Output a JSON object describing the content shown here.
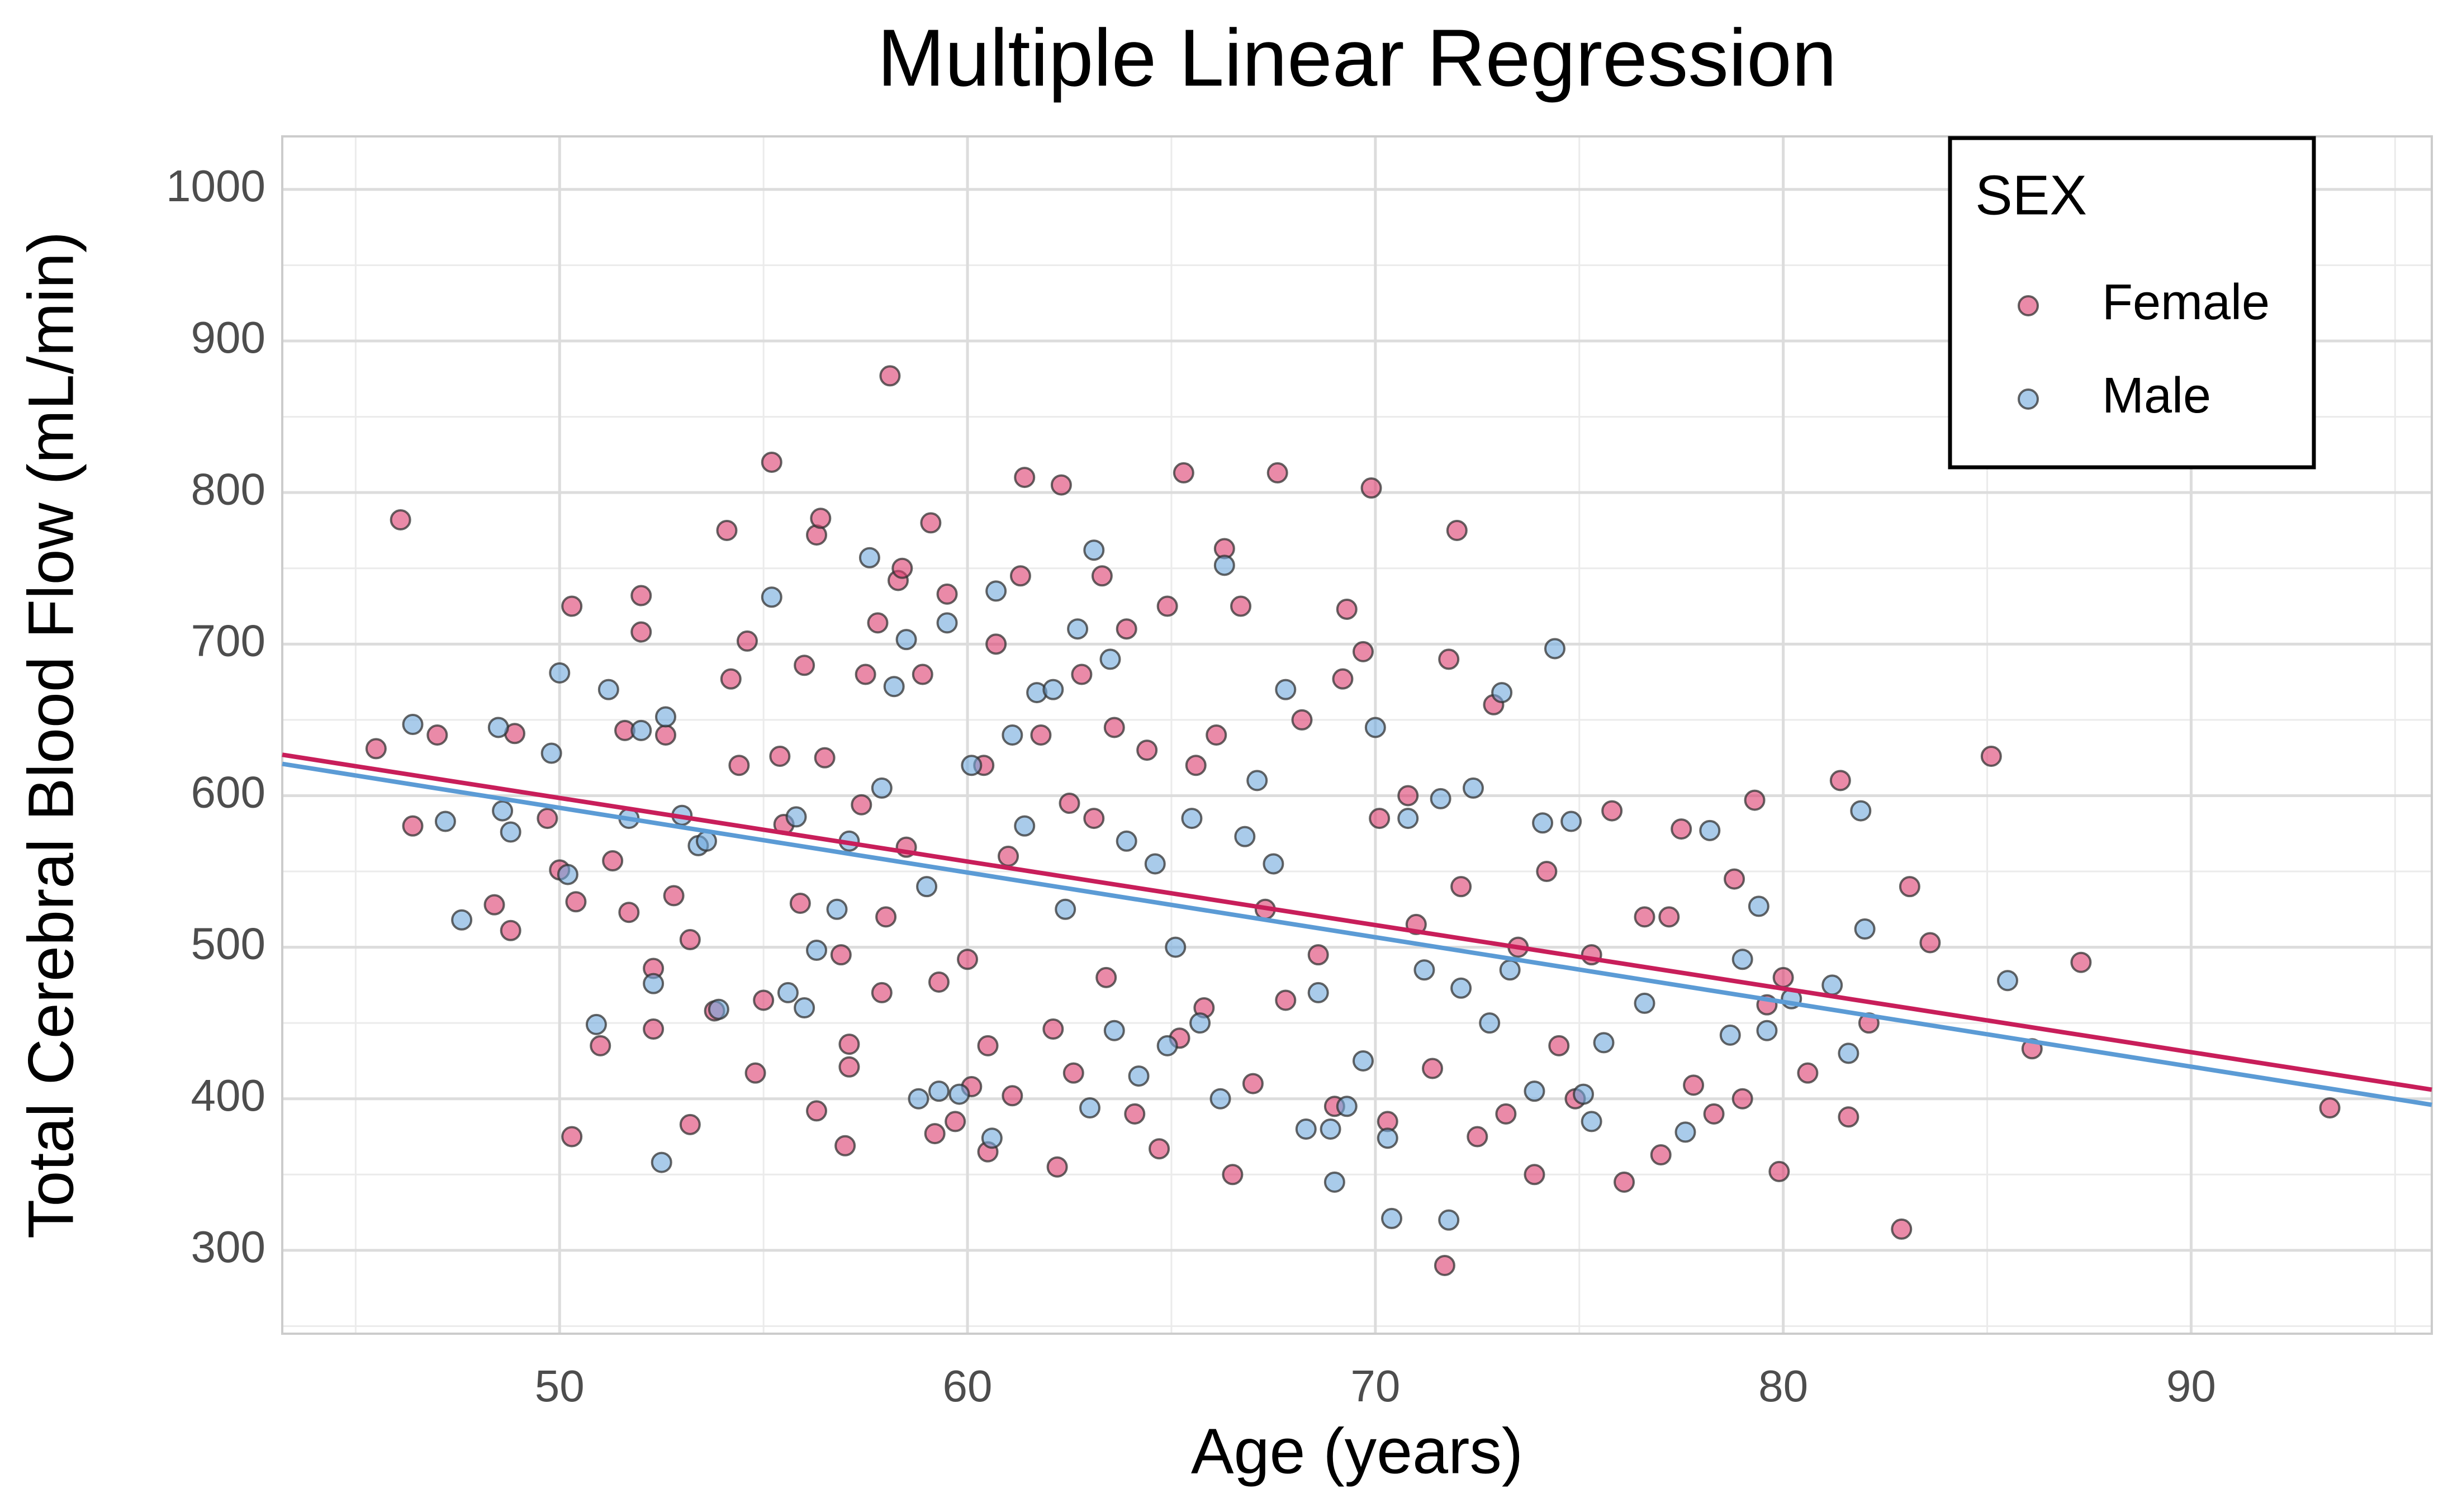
{
  "chart_data": {
    "type": "scatter",
    "title": "Multiple Linear Regression",
    "x_label": "Age (years)",
    "y_label": "Total Cerebral Blood Flow (mL/min)",
    "xlim": [
      43.2,
      95.9
    ],
    "ylim": [
      245,
      1035
    ],
    "xticks": [
      50,
      60,
      70,
      80,
      90
    ],
    "yticks": [
      300,
      400,
      500,
      600,
      700,
      800,
      900,
      1000
    ],
    "grid": true,
    "legend_title": "SEX",
    "legend_position": "top-right",
    "series": [
      {
        "name": "Female",
        "color": "#dc3c6e",
        "x": [
          45.5,
          46.1,
          46.4,
          47.0,
          48.4,
          48.8,
          48.9,
          49.7,
          50.0,
          50.3,
          50.3,
          50.4,
          51.0,
          51.3,
          51.6,
          51.7,
          52.0,
          52.0,
          52.3,
          52.3,
          52.6,
          52.8,
          53.2,
          53.2,
          53.8,
          54.1,
          54.2,
          54.4,
          54.6,
          54.8,
          55.0,
          55.2,
          55.4,
          55.5,
          55.9,
          56.0,
          56.3,
          56.3,
          56.4,
          56.5,
          56.9,
          57.0,
          57.1,
          57.1,
          57.4,
          57.5,
          57.8,
          57.9,
          58.0,
          58.1,
          58.3,
          58.4,
          58.5,
          58.9,
          59.1,
          59.2,
          59.3,
          59.5,
          59.7,
          60.0,
          60.1,
          60.4,
          60.5,
          60.5,
          60.7,
          61.0,
          61.1,
          61.3,
          61.4,
          61.8,
          62.1,
          62.2,
          62.3,
          62.5,
          62.6,
          62.8,
          63.1,
          63.3,
          63.4,
          63.6,
          63.9,
          64.1,
          64.4,
          64.7,
          64.9,
          65.2,
          65.3,
          65.6,
          65.8,
          66.1,
          66.3,
          66.5,
          66.7,
          67.0,
          67.3,
          67.6,
          67.8,
          68.2,
          68.6,
          69.0,
          69.2,
          69.3,
          69.7,
          69.9,
          70.1,
          70.3,
          70.8,
          71.0,
          71.4,
          71.7,
          71.8,
          72.0,
          72.1,
          72.5,
          72.9,
          73.2,
          73.5,
          73.9,
          74.2,
          74.5,
          74.9,
          75.3,
          75.8,
          76.1,
          76.6,
          77.0,
          77.2,
          77.5,
          77.8,
          78.3,
          78.8,
          79.0,
          79.3,
          79.6,
          79.9,
          80.0,
          80.6,
          81.4,
          81.6,
          82.1,
          82.9,
          83.1,
          83.6,
          85.1,
          86.1,
          87.3,
          93.4
        ],
        "values": [
          631,
          782,
          580,
          640,
          528,
          511,
          641,
          585,
          551,
          375,
          725,
          530,
          435,
          557,
          643,
          523,
          732,
          708,
          446,
          486,
          640,
          534,
          383,
          505,
          458,
          775,
          677,
          620,
          702,
          417,
          465,
          820,
          626,
          581,
          529,
          686,
          772,
          392,
          783,
          625,
          495,
          369,
          421,
          436,
          594,
          680,
          714,
          470,
          520,
          877,
          742,
          750,
          566,
          680,
          780,
          377,
          477,
          733,
          385,
          492,
          408,
          620,
          435,
          365,
          700,
          560,
          402,
          745,
          810,
          640,
          446,
          355,
          805,
          595,
          417,
          680,
          585,
          745,
          480,
          645,
          710,
          390,
          630,
          367,
          725,
          440,
          813,
          620,
          460,
          640,
          763,
          350,
          725,
          410,
          525,
          813,
          465,
          650,
          495,
          395,
          677,
          723,
          695,
          803,
          585,
          385,
          600,
          515,
          420,
          290,
          690,
          775,
          540,
          375,
          660,
          390,
          500,
          350,
          550,
          435,
          400,
          495,
          590,
          345,
          520,
          363,
          520,
          578,
          409,
          390,
          545,
          400,
          597,
          462,
          352,
          480,
          417,
          610,
          388,
          450,
          314,
          540,
          503,
          626,
          433,
          490,
          394
        ]
      },
      {
        "name": "Male",
        "color": "#6fa8dc",
        "x": [
          46.4,
          47.2,
          47.6,
          48.5,
          48.6,
          48.8,
          49.8,
          50.0,
          50.2,
          50.9,
          51.2,
          51.7,
          52.0,
          52.3,
          52.5,
          52.6,
          53.0,
          53.4,
          53.6,
          53.9,
          55.2,
          55.6,
          55.8,
          56.0,
          56.3,
          56.8,
          57.1,
          57.6,
          57.9,
          58.2,
          58.5,
          58.8,
          59.0,
          59.3,
          59.5,
          59.8,
          60.1,
          60.6,
          60.7,
          61.1,
          61.4,
          61.7,
          62.1,
          62.4,
          62.7,
          63.0,
          63.1,
          63.5,
          63.6,
          63.9,
          64.2,
          64.6,
          64.9,
          65.1,
          65.5,
          65.7,
          66.2,
          66.3,
          66.8,
          67.1,
          67.5,
          67.8,
          68.3,
          68.6,
          68.9,
          69.0,
          69.3,
          69.7,
          70.0,
          70.3,
          70.4,
          70.8,
          71.2,
          71.6,
          71.8,
          72.1,
          72.4,
          72.8,
          73.1,
          73.3,
          73.9,
          74.1,
          74.4,
          74.8,
          75.1,
          75.3,
          75.6,
          76.6,
          77.6,
          78.2,
          78.7,
          79.0,
          79.4,
          79.6,
          80.2,
          81.2,
          81.6,
          81.9,
          82.0,
          85.5
        ],
        "values": [
          647,
          583,
          518,
          645,
          590,
          576,
          628,
          681,
          548,
          449,
          670,
          585,
          643,
          476,
          358,
          652,
          587,
          567,
          570,
          459,
          731,
          470,
          586,
          460,
          498,
          525,
          570,
          757,
          605,
          672,
          703,
          400,
          540,
          405,
          714,
          403,
          620,
          374,
          735,
          640,
          580,
          668,
          670,
          525,
          710,
          394,
          762,
          690,
          445,
          570,
          415,
          555,
          435,
          500,
          585,
          450,
          400,
          752,
          573,
          610,
          555,
          670,
          380,
          470,
          380,
          345,
          395,
          425,
          645,
          374,
          321,
          585,
          485,
          598,
          320,
          473,
          605,
          450,
          668,
          485,
          405,
          582,
          697,
          583,
          403,
          385,
          437,
          463,
          378,
          577,
          442,
          492,
          527,
          445,
          466,
          475,
          430,
          590,
          512,
          478
        ]
      }
    ],
    "fit_lines": [
      {
        "color": "#c81e5a",
        "x": [
          43.2,
          95.9
        ],
        "values": [
          627,
          406
        ]
      },
      {
        "color": "#5b9bd5",
        "x": [
          43.2,
          95.9
        ],
        "values": [
          621,
          396
        ]
      }
    ]
  }
}
